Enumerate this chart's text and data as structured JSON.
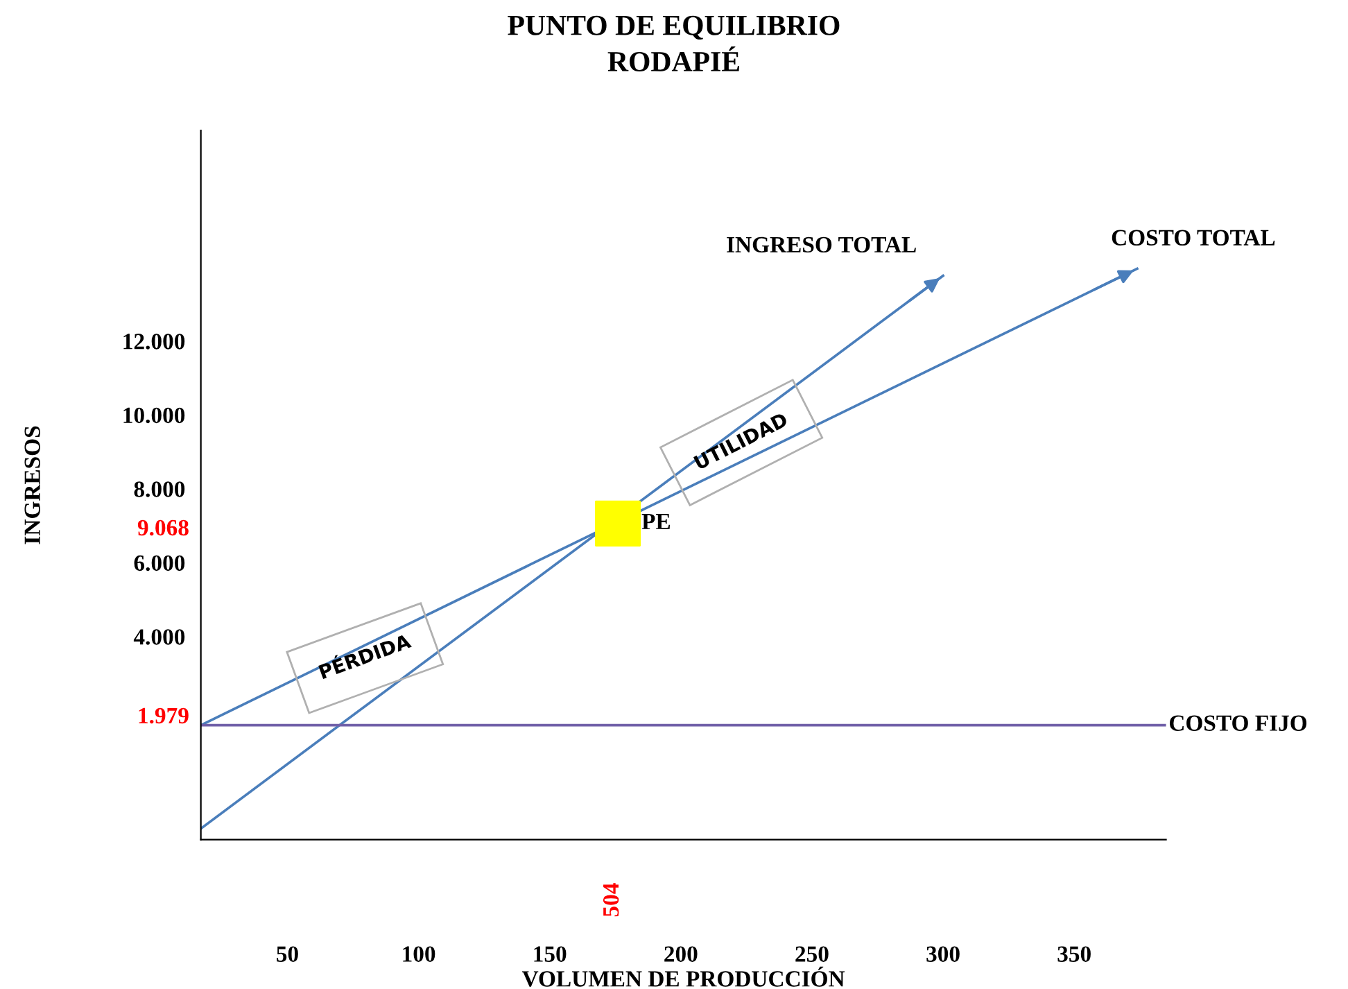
{
  "chart_data": {
    "type": "line",
    "title": "PUNTO DE EQUILIBRIO\nRODAPIÉ",
    "xlabel": "VOLUMEN DE PRODUCCIÓN",
    "ylabel": "INGRESOS",
    "xlim": [
      17,
      385
    ],
    "ylim": [
      -1500,
      17700
    ],
    "xticks": [
      50,
      100,
      150,
      200,
      250,
      300,
      350
    ],
    "yticks": [
      {
        "value": 4000,
        "label": "4.000"
      },
      {
        "value": 6000,
        "label": "6.000"
      },
      {
        "value": 8000,
        "label": "8.000"
      },
      {
        "value": 10000,
        "label": "10.000"
      },
      {
        "value": 12000,
        "label": "12.000"
      }
    ],
    "grid": false,
    "legend": false,
    "series": [
      {
        "name": "INGRESO TOTAL",
        "color": "#4a7ebb",
        "x": [
          17,
          300
        ],
        "values": [
          -1200,
          13770
        ]
      },
      {
        "name": "COSTO TOTAL",
        "color": "#4a7ebb",
        "x": [
          17,
          374
        ],
        "values": [
          1600,
          13960
        ]
      },
      {
        "name": "COSTO FIJO",
        "color": "#7060a8",
        "x": [
          17,
          385
        ],
        "values": [
          1600,
          1600
        ]
      },
      {
        "name": "PE",
        "type": "scatter",
        "marker": "square",
        "color": "#ffff00",
        "x": [
          176
        ],
        "values": [
          7060
        ]
      }
    ],
    "annotations": [
      "PÉRDIDA",
      "UTILIDAD",
      "1.979",
      "9.068",
      "504"
    ]
  }
}
